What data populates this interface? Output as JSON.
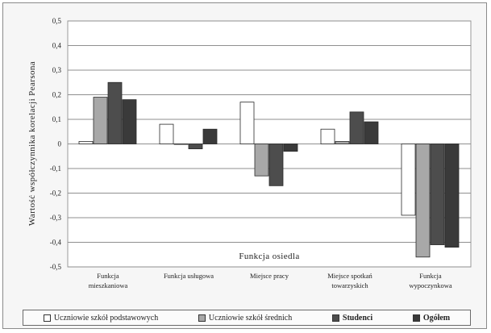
{
  "chart_data": {
    "type": "bar",
    "categories": [
      [
        "Funkcja",
        "mieszkaniowa"
      ],
      [
        "Funkcja usługowa"
      ],
      [
        "Miejsce pracy"
      ],
      [
        "Miejsce spotkań",
        "towarzyskich"
      ],
      [
        "Funkcja",
        "wypoczynkowa"
      ]
    ],
    "series": [
      {
        "name": "Uczniowie szkół podstawowych",
        "values": [
          0.01,
          0.08,
          0.17,
          0.06,
          -0.29
        ],
        "color": "#ffffff"
      },
      {
        "name": "Uczniowie szkół średnich",
        "values": [
          0.19,
          0.0,
          -0.13,
          0.01,
          -0.46
        ],
        "color": "#a8a8a8"
      },
      {
        "name": "Studenci",
        "values": [
          0.25,
          -0.02,
          -0.17,
          0.13,
          -0.41
        ],
        "color": "#4d4d4d"
      },
      {
        "name": "Ogółem",
        "values": [
          0.18,
          0.06,
          -0.03,
          0.09,
          -0.42
        ],
        "color": "#3a3a3a"
      }
    ],
    "ylabel": "Wartość współczynnika korelacji Pearsona",
    "xlabel": "Funkcja osiedla",
    "ylim": [
      -0.5,
      0.5
    ],
    "yticks": [
      "0,5",
      "0,4",
      "0,3",
      "0,2",
      "0,1",
      "0",
      "-0,1",
      "-0,2",
      "-0,3",
      "-0,4",
      "-0,5"
    ],
    "grid": true,
    "legend_position": "bottom"
  }
}
